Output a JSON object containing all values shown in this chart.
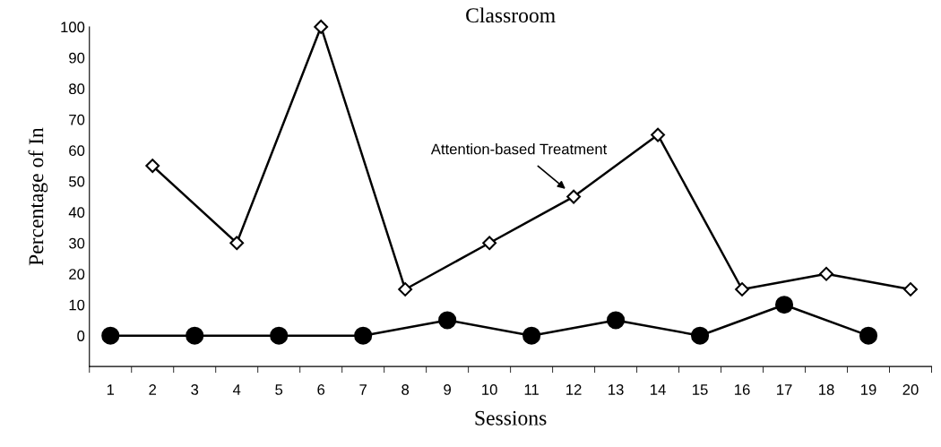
{
  "chart_data": {
    "type": "line",
    "title": "Classroom",
    "xlabel": "Sessions",
    "ylabel": "Percentage of In",
    "categories": [
      "1",
      "2",
      "3",
      "4",
      "5",
      "6",
      "7",
      "8",
      "9",
      "10",
      "11",
      "12",
      "13",
      "14",
      "15",
      "16",
      "17",
      "18",
      "19",
      "20"
    ],
    "series": [
      {
        "color": "#ffffff",
        "marker": "diamond",
        "values": [
          null,
          55,
          null,
          30,
          null,
          100,
          null,
          15,
          null,
          30,
          null,
          45,
          null,
          65,
          null,
          15,
          null,
          20,
          null,
          15
        ]
      },
      {
        "color": "#000000",
        "marker": "circle",
        "values": [
          0,
          null,
          0,
          null,
          0,
          null,
          0,
          null,
          5,
          null,
          0,
          null,
          5,
          null,
          0,
          null,
          10,
          null,
          0,
          null
        ]
      }
    ],
    "ylim": [
      -10,
      100
    ],
    "yticks": [
      0,
      10,
      20,
      30,
      40,
      50,
      60,
      70,
      80,
      90,
      100
    ],
    "grid": false,
    "legend": false,
    "line_style": "solid",
    "annotations": [
      {
        "text": "Attention-based Treatment",
        "x": "12",
        "y": 45
      }
    ]
  }
}
